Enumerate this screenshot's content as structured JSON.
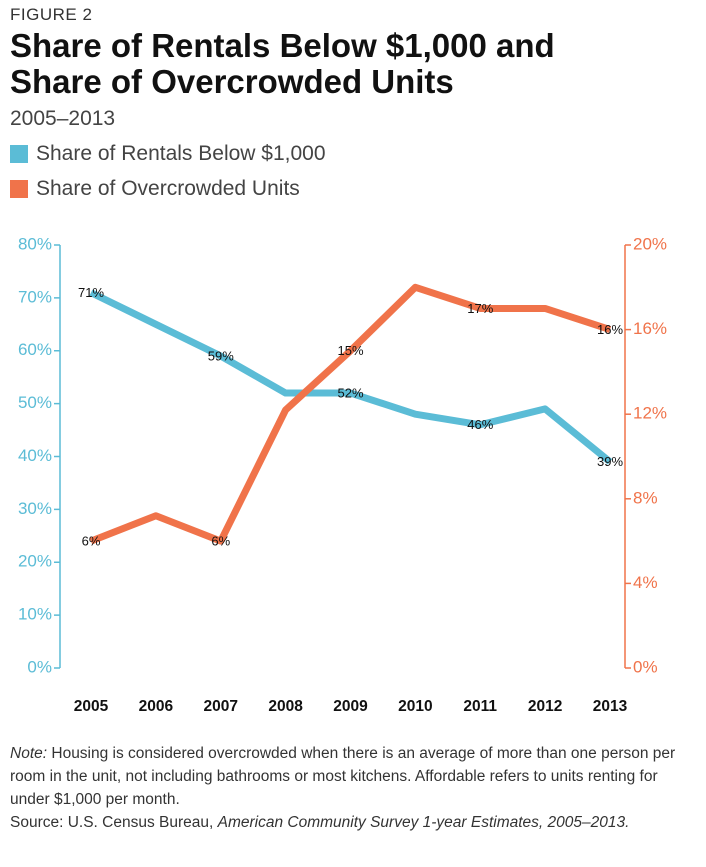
{
  "figure_label": "FIGURE 2",
  "chart_data": {
    "type": "line",
    "title": "Share of Rentals Below $1,000 and Share of Overcrowded Units",
    "subtitle": "2005–2013",
    "categories": [
      "2005",
      "2006",
      "2007",
      "2008",
      "2009",
      "2010",
      "2011",
      "2012",
      "2013"
    ],
    "ylim": [
      0,
      80
    ],
    "yticks": [
      {
        "value": 0,
        "label": "0%"
      },
      {
        "value": 10,
        "label": "10%"
      },
      {
        "value": 20,
        "label": "20%"
      },
      {
        "value": 30,
        "label": "30%"
      },
      {
        "value": 40,
        "label": "40%"
      },
      {
        "value": 50,
        "label": "50%"
      },
      {
        "value": 60,
        "label": "60%"
      },
      {
        "value": 70,
        "label": "70%"
      },
      {
        "value": 80,
        "label": "80%"
      }
    ],
    "y2lim": [
      0,
      20
    ],
    "y2ticks": [
      {
        "value": 0,
        "label": "0%"
      },
      {
        "value": 4,
        "label": "4%"
      },
      {
        "value": 8,
        "label": "8%"
      },
      {
        "value": 12,
        "label": "12%"
      },
      {
        "value": 16,
        "label": "16%"
      },
      {
        "value": 20,
        "label": "20%"
      }
    ],
    "series": [
      {
        "name": "Share of Rentals Below $1,000",
        "color": "#5bbcd6",
        "axis": "y",
        "values": [
          71,
          65,
          59,
          52,
          52,
          48,
          46,
          49,
          39
        ],
        "value_labels": [
          "71%",
          null,
          "59%",
          null,
          "52%",
          null,
          "46%",
          null,
          "39%"
        ]
      },
      {
        "name": "Share of Overcrowded Units",
        "color": "#f0734a",
        "axis": "y2",
        "values": [
          6,
          7.2,
          6,
          12.2,
          15,
          18,
          17,
          17,
          16
        ],
        "value_labels": [
          "6%",
          null,
          "6%",
          null,
          "15%",
          null,
          "17%",
          null,
          "16%"
        ]
      }
    ]
  },
  "note_label": "Note:",
  "note_text": "Housing is considered overcrowded when there is an average of more than one person per room in the unit, not including bathrooms or most kitchens. Affordable refers to units renting for under $1,000 per month.",
  "source": "Source: U.S. Census Bureau,",
  "source_publication": "American Community Survey 1-year Estimates, 2005–2013."
}
